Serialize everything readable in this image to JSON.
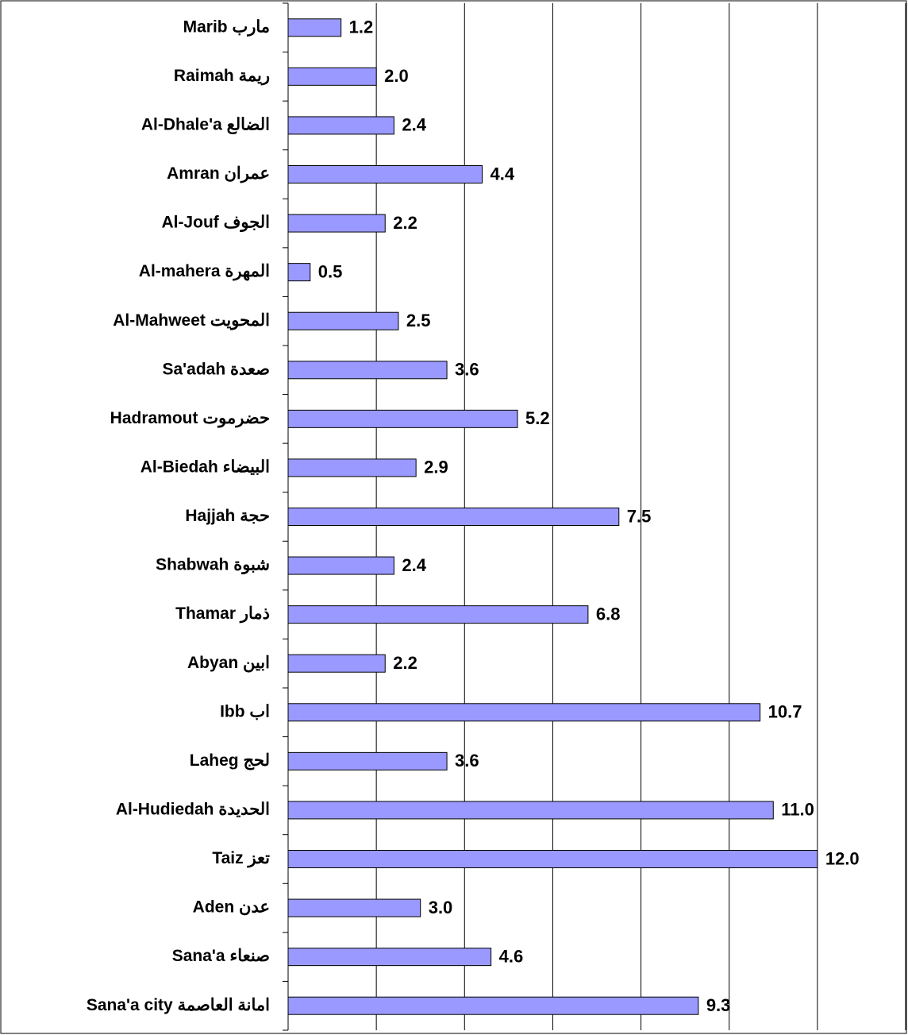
{
  "chart_data": {
    "type": "bar",
    "orientation": "horizontal",
    "categories": [
      "Marib مارب",
      "Raimah ريمة",
      "Al-Dhale'a الضالع",
      "Amran عمران",
      "Al-Jouf الجوف",
      "Al-mahera المهرة",
      "Al-Mahweet المحويت",
      "Sa'adah صعدة",
      "Hadramout حضرموت",
      "Al-Biedah البيضاء",
      "Hajjah حجة",
      "Shabwah شبوة",
      "Thamar ذمار",
      "Abyan ابين",
      "Ibb اب",
      "Laheg لحج",
      "Al-Hudiedah الحديدة",
      "Taiz تعز",
      "Aden عدن",
      "Sana'a صنعاء",
      "Sana'a city امانة العاصمة"
    ],
    "values": [
      1.2,
      2.0,
      2.4,
      4.4,
      2.2,
      0.5,
      2.5,
      3.6,
      5.2,
      2.9,
      7.5,
      2.4,
      6.8,
      2.2,
      10.7,
      3.6,
      11.0,
      12.0,
      3.0,
      4.6,
      9.3
    ],
    "value_labels": [
      "1.2",
      "2.0",
      "2.4",
      "4.4",
      "2.2",
      "0.5",
      "2.5",
      "3.6",
      "5.2",
      "2.9",
      "7.5",
      "2.4",
      "6.8",
      "2.2",
      "10.7",
      "3.6",
      "11.0",
      "12.0",
      "3.0",
      "4.6",
      "9.3"
    ],
    "color": "#9999ff",
    "xlim": [
      0,
      14
    ],
    "xticks": [
      0,
      2,
      4,
      6,
      8,
      10,
      12,
      14
    ],
    "grid": true
  }
}
